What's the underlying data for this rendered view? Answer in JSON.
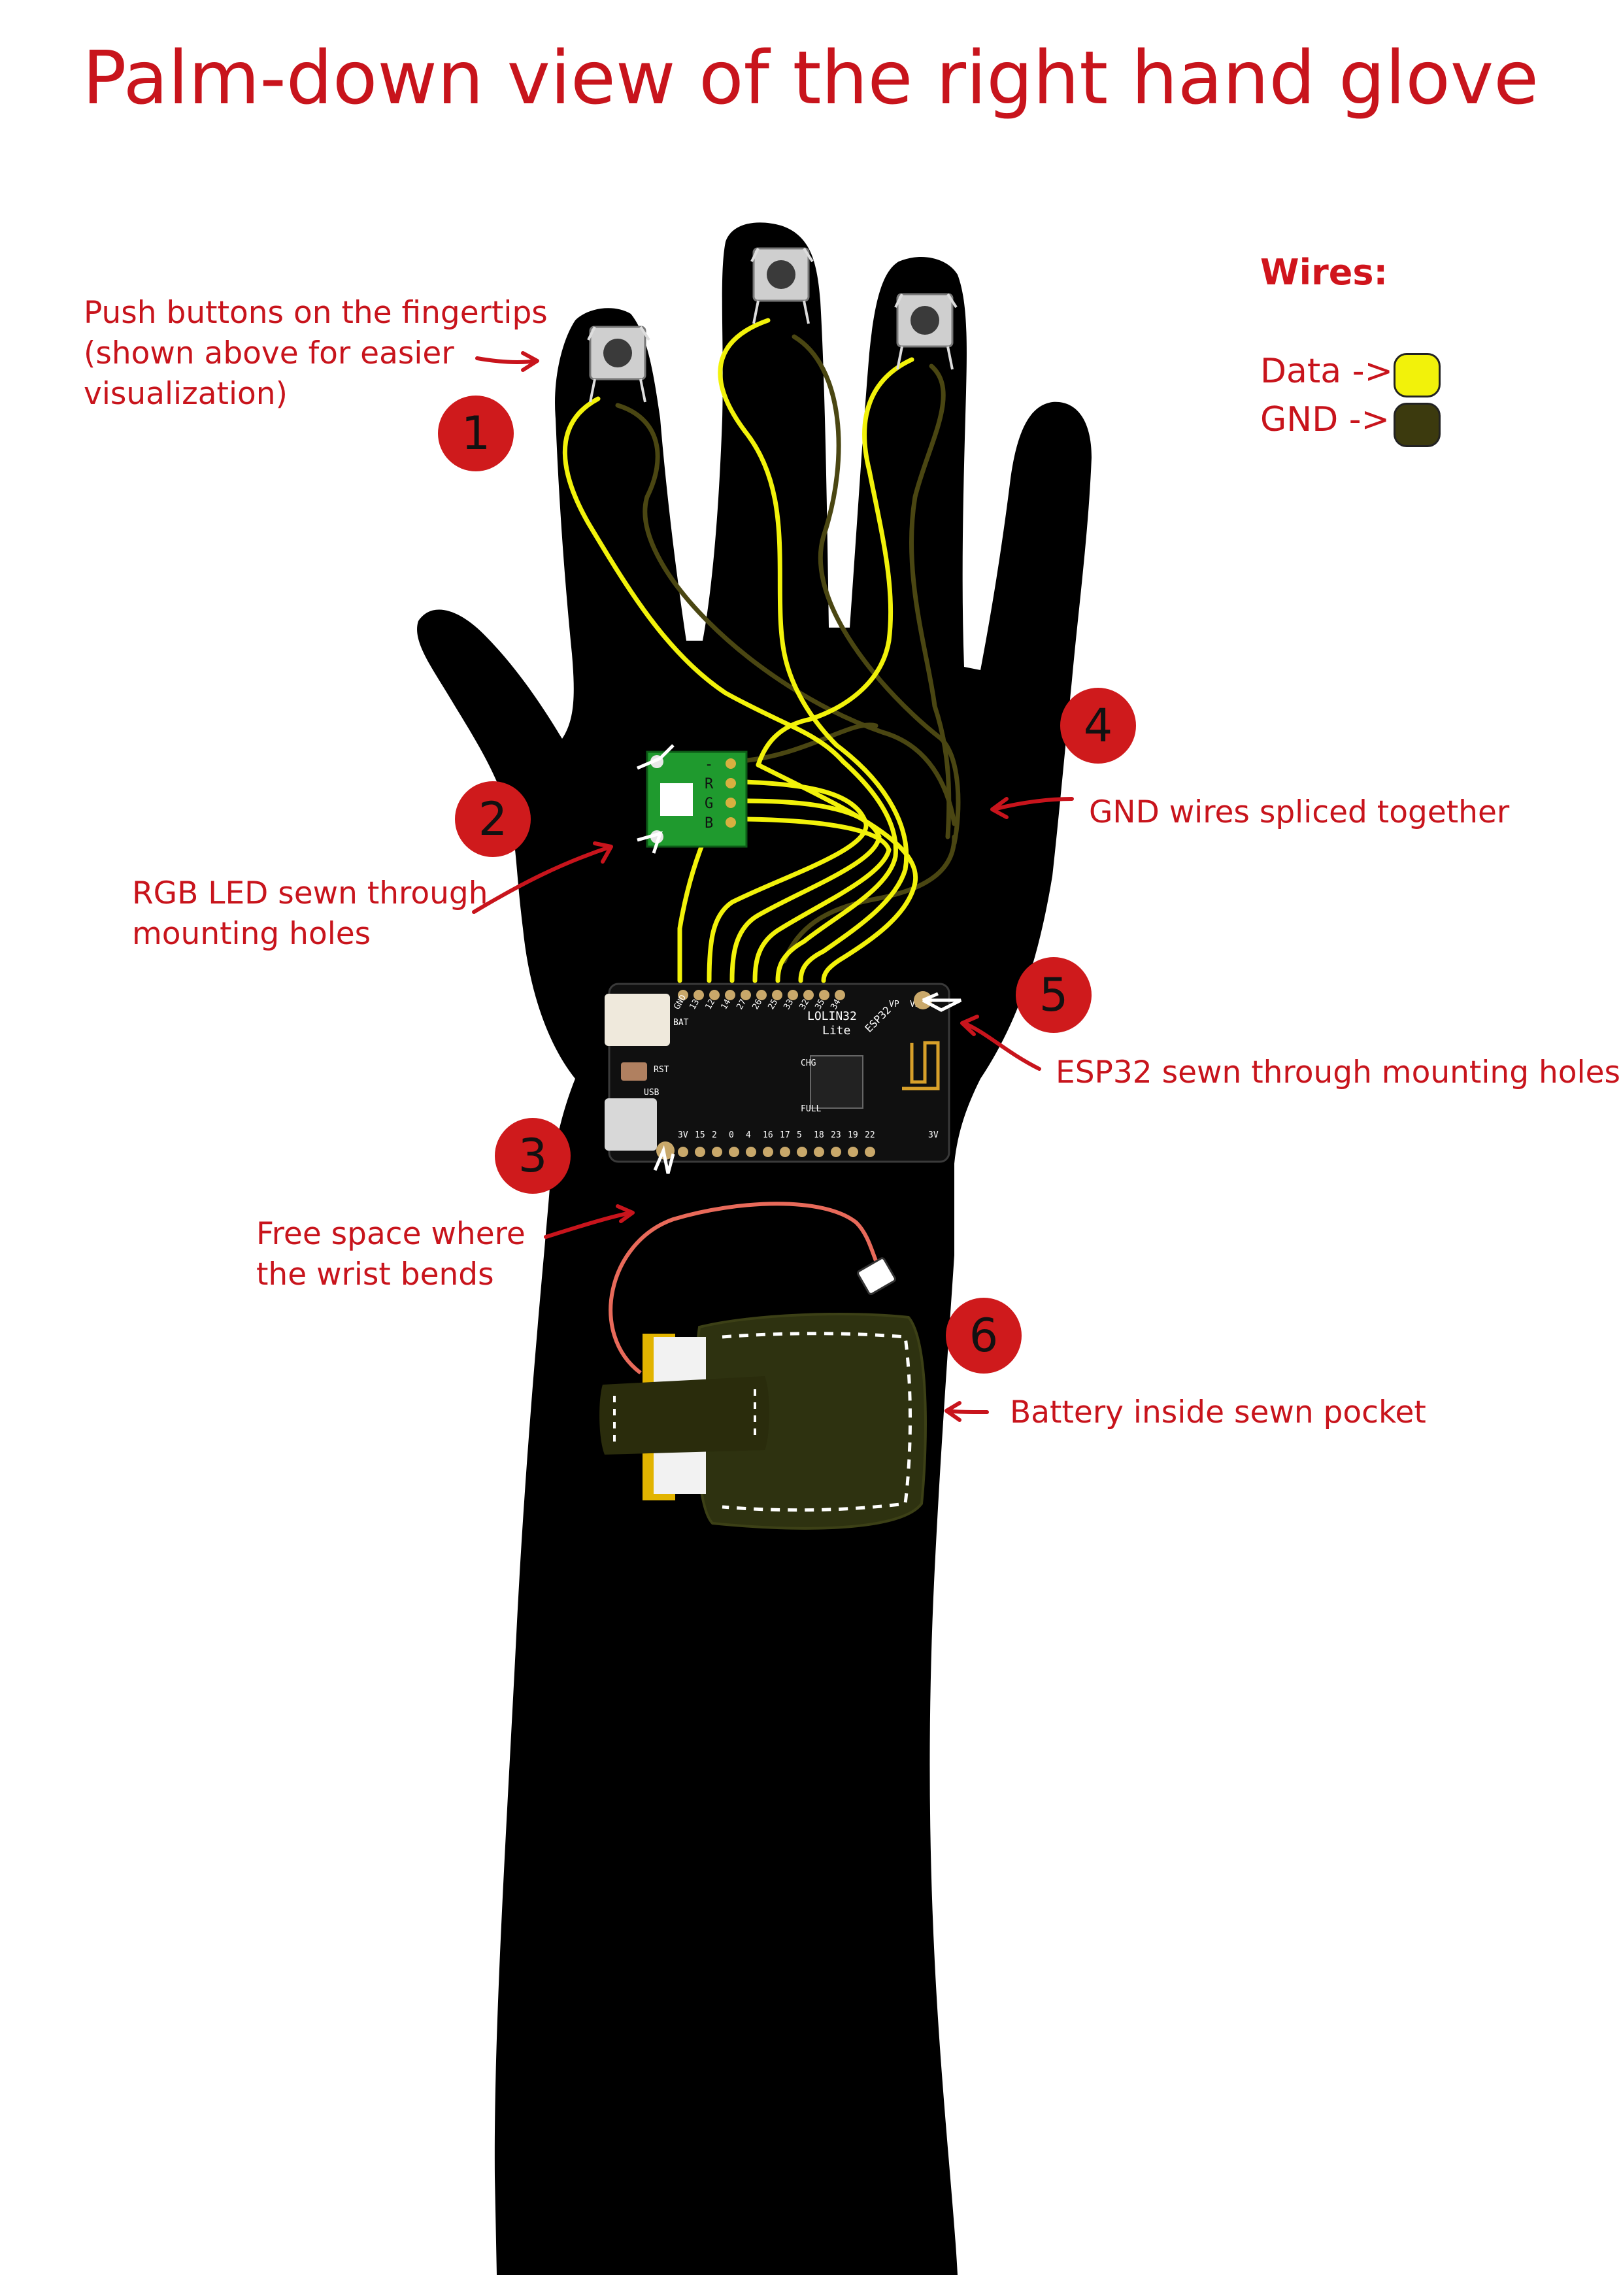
{
  "title": "Palm-down view of the right hand glove",
  "legend": {
    "heading": "Wires:",
    "items": [
      {
        "label": "Data ->",
        "color": "#f2f20a",
        "meaning": "data-wire"
      },
      {
        "label": "GND ->",
        "color": "#3c3a0e",
        "meaning": "ground-wire"
      }
    ]
  },
  "colors": {
    "accent_red": "#c8141c",
    "glove": "#000000",
    "data_wire": "#f2f20a",
    "gnd_wire": "#4a4612",
    "pcb_green": "#1f9a2e",
    "pocket": "#2e3210",
    "battery_lead": "#e86a5a",
    "battery_tape": "#e2b400"
  },
  "callouts": [
    {
      "number": "1",
      "text": "Push buttons on the fingertips\n(shown above for easier\nvisualization)"
    },
    {
      "number": "2",
      "text": "RGB LED sewn through\nmounting holes"
    },
    {
      "number": "3",
      "text": "Free space where\nthe wrist bends"
    },
    {
      "number": "4",
      "text": "GND wires spliced together"
    },
    {
      "number": "5",
      "text": "ESP32 sewn through mounting holes"
    },
    {
      "number": "6",
      "text": "Battery inside sewn pocket"
    }
  ],
  "led_board": {
    "pins": [
      "-",
      "R",
      "G",
      "B"
    ]
  },
  "esp32_board": {
    "name": "LOLIN32",
    "variant": "Lite",
    "chip": "ESP32",
    "pin_labels_top": [
      "GND",
      "13",
      "12",
      "14",
      "27",
      "26",
      "25",
      "33",
      "32",
      "35",
      "34"
    ],
    "pin_labels_bottom": [
      "3V",
      "15",
      "2",
      "0",
      "4",
      "16",
      "17",
      "5",
      "18",
      "23",
      "19",
      "22"
    ],
    "misc_labels": [
      "BAT",
      "RST",
      "USB",
      "CHG",
      "FULL",
      "VP",
      "VN",
      "3V"
    ]
  }
}
